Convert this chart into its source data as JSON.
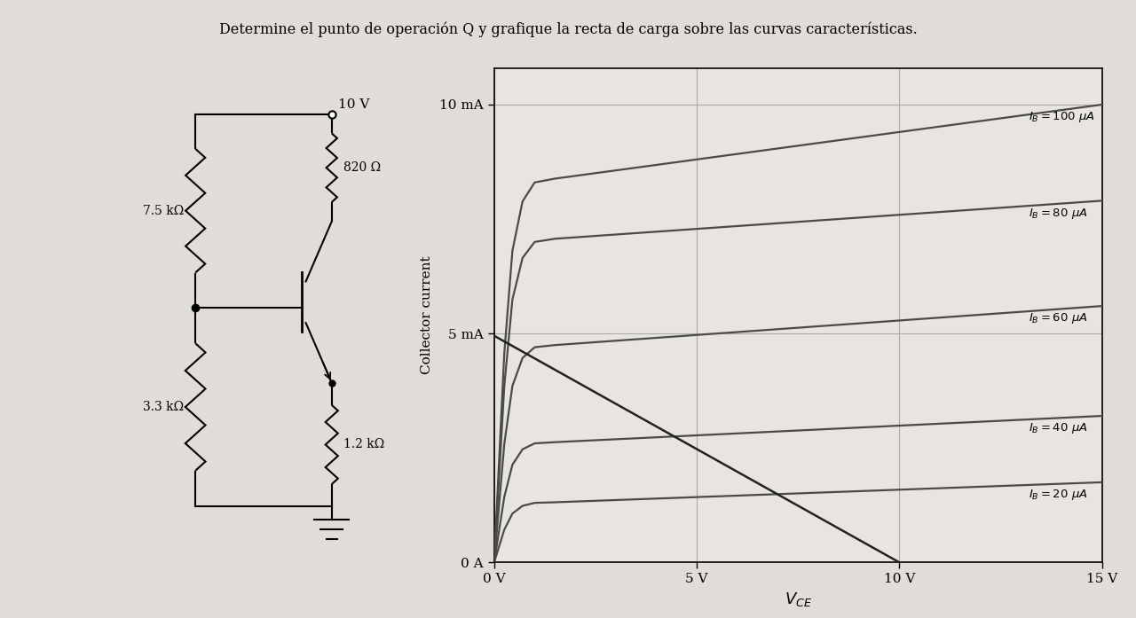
{
  "title": "Determine el punto de operación Q y grafique la recta de carga sobre las curvas características.",
  "title_fontsize": 11.5,
  "background_color": "#e0ddd8",
  "graph_bg": "#e8e5e0",
  "vcc": 10,
  "rc_ohms": 820,
  "re_ohms": 1200,
  "r1_label": "7.5 kΩ",
  "r2_label": "3.3 kΩ",
  "rc_label": "820 Ω",
  "re_label": "1.2 kΩ",
  "vcc_label": "10 V",
  "ylabel": "Collector current",
  "xlabel": "$V_{CE}$",
  "ytick_vals": [
    0,
    5,
    10
  ],
  "ytick_labels": [
    "0 A",
    "5 mA",
    "10 mA"
  ],
  "xtick_vals": [
    0,
    5,
    10,
    15
  ],
  "xtick_labels": [
    "0 V",
    "5 V",
    "10 V",
    "15 V"
  ],
  "xlim": [
    0,
    15
  ],
  "ylim": [
    0,
    10.8
  ],
  "ib_curves": [
    {
      "ib_uA": 20,
      "ic_knee_mA": 1.3,
      "ic_end_mA": 1.75
    },
    {
      "ib_uA": 40,
      "ic_knee_mA": 2.6,
      "ic_end_mA": 3.2
    },
    {
      "ib_uA": 60,
      "ic_knee_mA": 4.7,
      "ic_end_mA": 5.6
    },
    {
      "ib_uA": 80,
      "ic_knee_mA": 7.0,
      "ic_end_mA": 7.9
    },
    {
      "ib_uA": 100,
      "ic_knee_mA": 8.3,
      "ic_end_mA": 10.0
    }
  ],
  "curve_color": "#4a4a4a",
  "curve_lw": 1.6,
  "load_line_color": "#222222",
  "load_line_lw": 1.8,
  "grid_color": "#aaaaaa",
  "curve_labels": [
    "$I_B = 100\\ \\mu A$",
    "$I_B = 80\\ \\mu A$",
    "$I_B = 60\\ \\mu A$",
    "$I_B = 40\\ \\mu A$",
    "$I_B = 20\\ \\mu A$"
  ]
}
